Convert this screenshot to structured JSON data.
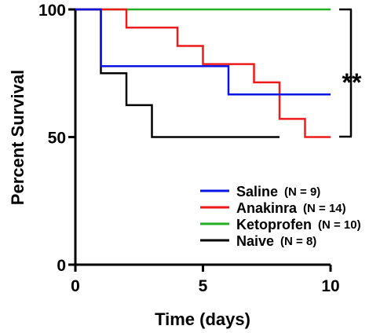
{
  "chart_data": {
    "type": "line",
    "subtype": "kaplan-meier-step",
    "xlabel": "Time (days)",
    "ylabel": "Percent Survival",
    "xlim": [
      0,
      10
    ],
    "ylim": [
      0,
      100
    ],
    "xticks": [
      "0",
      "5",
      "10"
    ],
    "yticks": [
      "0",
      "50",
      "100"
    ],
    "grid": false,
    "legend_position": "lower-right",
    "annotation": "**",
    "series": [
      {
        "name": "Saline",
        "n_label": "(N = 9)",
        "color": "#0a14e6",
        "x": [
          0,
          1,
          1,
          6,
          6,
          10
        ],
        "y": [
          100,
          100,
          77.8,
          77.8,
          66.7,
          66.7
        ]
      },
      {
        "name": "Anakinra",
        "n_label": "(N = 14)",
        "color": "#ee1a1a",
        "x": [
          0,
          2,
          2,
          4,
          4,
          5,
          5,
          7,
          7,
          8,
          8,
          9,
          9,
          10
        ],
        "y": [
          100,
          100,
          92.9,
          92.9,
          85.7,
          85.7,
          78.6,
          78.6,
          71.4,
          71.4,
          57.1,
          57.1,
          50,
          50
        ]
      },
      {
        "name": "Ketoprofen",
        "n_label": "(N = 10)",
        "color": "#22b022",
        "x": [
          0,
          10
        ],
        "y": [
          100,
          100
        ]
      },
      {
        "name": "Naive",
        "n_label": "(N = 8)",
        "color": "#000000",
        "x": [
          0,
          1,
          1,
          2,
          2,
          3,
          3,
          8
        ],
        "y": [
          100,
          100,
          75,
          75,
          62.5,
          62.5,
          50,
          50
        ]
      }
    ]
  }
}
